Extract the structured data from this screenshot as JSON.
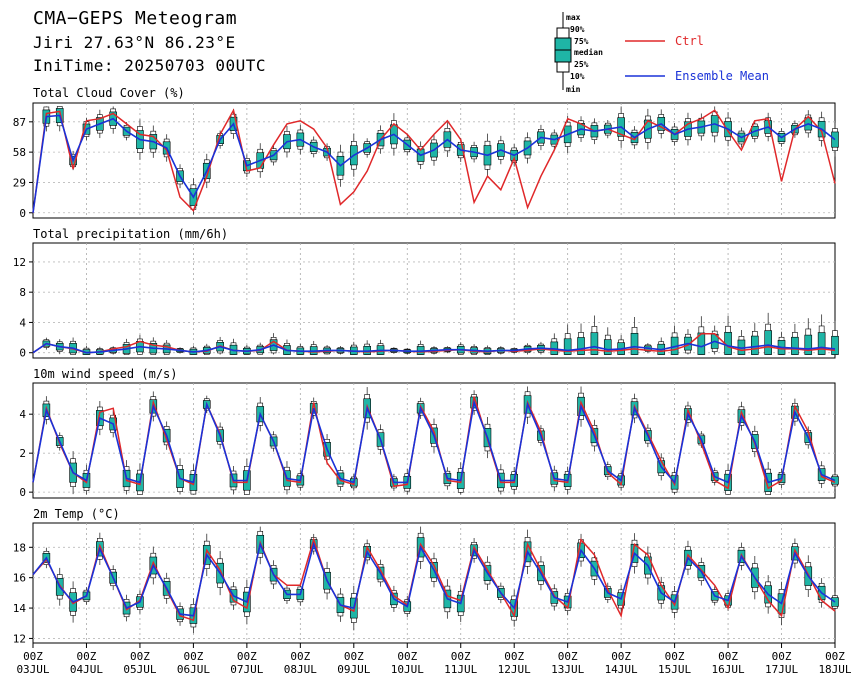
{
  "header": {
    "title": "CMA−GEPS Meteogram",
    "location": "Jiri 27.63°N 86.23°E",
    "init": "IniTime: 20250703 00UTC"
  },
  "legend": {
    "box_labels": [
      "max",
      "90%",
      "75%",
      "median",
      "25%",
      "10%",
      "min"
    ],
    "ctrl_label": "Ctrl",
    "ens_label": "Ensemble Mean",
    "ctrl_color": "#e0282a",
    "ens_color": "#1a32d8",
    "box_color": "#1fb5a6"
  },
  "chart_data": {
    "type": "meteogram",
    "time_step_hours": 6,
    "x_tick_labels": [
      [
        "00Z",
        "03JUL"
      ],
      [
        "00Z",
        "04JUL"
      ],
      [
        "00Z",
        "05JUL"
      ],
      [
        "00Z",
        "06JUL"
      ],
      [
        "00Z",
        "07JUL"
      ],
      [
        "00Z",
        "08JUL"
      ],
      [
        "00Z",
        "09JUL"
      ],
      [
        "00Z",
        "10JUL"
      ],
      [
        "00Z",
        "11JUL"
      ],
      [
        "00Z",
        "12JUL"
      ],
      [
        "00Z",
        "13JUL"
      ],
      [
        "00Z",
        "14JUL"
      ],
      [
        "00Z",
        "15JUL"
      ],
      [
        "00Z",
        "16JUL"
      ],
      [
        "00Z",
        "17JUL"
      ],
      [
        "00Z",
        "18JUL"
      ]
    ],
    "panels": [
      {
        "id": "cloud",
        "title": "Total Cloud Cover (%)",
        "yticks": [
          0,
          29,
          58,
          87
        ],
        "ylim": [
          -5,
          105
        ],
        "ctrl": [
          0,
          95,
          97,
          42,
          88,
          90,
          95,
          85,
          75,
          73,
          60,
          15,
          2,
          35,
          75,
          98,
          40,
          43,
          65,
          85,
          88,
          80,
          62,
          8,
          20,
          40,
          70,
          85,
          75,
          60,
          75,
          88,
          70,
          10,
          35,
          22,
          52,
          5,
          35,
          60,
          90,
          85,
          78,
          80,
          75,
          70,
          88,
          82,
          75,
          85,
          90,
          98,
          78,
          60,
          88,
          90,
          30,
          80,
          92,
          78,
          28,
          88,
          92,
          85,
          95,
          95,
          97,
          95,
          90
        ],
        "mean": [
          0,
          92,
          93,
          50,
          80,
          85,
          90,
          78,
          70,
          68,
          62,
          35,
          15,
          40,
          70,
          85,
          45,
          50,
          55,
          68,
          70,
          63,
          58,
          45,
          55,
          62,
          70,
          75,
          65,
          55,
          60,
          70,
          60,
          58,
          55,
          60,
          55,
          62,
          72,
          70,
          75,
          80,
          78,
          80,
          82,
          72,
          80,
          85,
          75,
          80,
          82,
          85,
          80,
          72,
          78,
          82,
          72,
          80,
          85,
          80,
          70,
          78,
          82,
          85,
          88,
          85,
          90,
          88,
          85
        ]
      },
      {
        "id": "precip",
        "title": "Total precipitation (mm/6h)",
        "yticks": [
          0,
          4,
          8,
          12
        ],
        "ylim": [
          -0.7,
          14.5
        ],
        "ctrl": [
          0,
          1.2,
          0.8,
          0.5,
          0,
          0.1,
          0.5,
          0.8,
          1.5,
          1.0,
          0.8,
          0.3,
          0.1,
          0.2,
          0.9,
          0.3,
          0.2,
          0.3,
          1.5,
          0.3,
          0.2,
          0.1,
          0.2,
          0.3,
          0.2,
          0.1,
          0.2,
          0.3,
          0.2,
          0.1,
          0.2,
          0.3,
          0.4,
          0.2,
          0.1,
          0.3,
          0.2,
          0.3,
          0.5,
          0.3,
          0.2,
          0.3,
          0.4,
          0.2,
          0.3,
          0.5,
          0.3,
          0.2,
          0.4,
          1.0,
          2.5,
          2.5,
          0.8,
          0.3,
          0.5,
          0.8,
          0.5,
          0.5,
          0.3,
          0.5,
          0.3,
          0.2,
          0.4,
          0.6,
          0.8,
          1.0,
          1.2,
          0.5,
          0.5
        ],
        "mean": [
          0,
          1.2,
          0.8,
          0.6,
          0,
          0.1,
          0.3,
          0.5,
          0.8,
          0.6,
          0.5,
          0.3,
          0.1,
          0.3,
          0.8,
          0.3,
          0.2,
          0.4,
          1.0,
          0.3,
          0.2,
          0.2,
          0.3,
          0.3,
          0.2,
          0.2,
          0.3,
          0.3,
          0.2,
          0.2,
          0.3,
          0.4,
          0.4,
          0.3,
          0.2,
          0.3,
          0.3,
          0.5,
          0.6,
          0.5,
          0.3,
          0.5,
          0.8,
          0.4,
          0.5,
          0.8,
          0.6,
          0.4,
          0.8,
          1.2,
          0.8,
          1.5,
          0.9,
          0.6,
          0.8,
          1.0,
          0.7,
          0.6,
          0.5,
          0.7,
          0.5,
          0.6,
          0.8,
          1.0,
          1.2,
          1.0,
          2.5,
          1.5,
          1.8
        ]
      },
      {
        "id": "wind",
        "title": "10m wind speed (m/s)",
        "yticks": [
          0,
          2,
          4
        ],
        "ylim": [
          -0.3,
          5.6
        ],
        "ctrl": [
          0.5,
          4.3,
          2.5,
          1.0,
          0.5,
          4.1,
          4.3,
          0.6,
          0.4,
          4.6,
          2.7,
          0.7,
          0.4,
          4.5,
          3.0,
          0.5,
          0.5,
          4.0,
          2.6,
          0.6,
          0.5,
          4.6,
          1.5,
          0.6,
          0.4,
          4.4,
          2.7,
          0.3,
          0.4,
          4.4,
          3.1,
          0.6,
          0.5,
          4.9,
          2.7,
          0.5,
          0.5,
          4.6,
          3.1,
          0.6,
          0.5,
          4.6,
          3.1,
          1.0,
          0.4,
          4.4,
          3.0,
          1.6,
          0.4,
          4.2,
          2.5,
          0.6,
          0.2,
          4.1,
          2.5,
          0.2,
          0.6,
          4.4,
          3.1,
          0.8,
          0.5,
          4.1,
          2.6,
          1.8,
          0.4,
          4.1,
          2.1,
          0.8,
          0.5
        ],
        "mean": [
          0.5,
          4.2,
          2.6,
          1.0,
          0.6,
          3.8,
          3.5,
          0.7,
          0.5,
          4.4,
          2.9,
          0.7,
          0.5,
          4.5,
          2.9,
          0.6,
          0.6,
          4.0,
          2.6,
          0.7,
          0.6,
          4.3,
          2.2,
          0.7,
          0.5,
          4.3,
          2.7,
          0.5,
          0.5,
          4.3,
          2.9,
          0.7,
          0.6,
          4.6,
          2.8,
          0.6,
          0.6,
          4.5,
          2.9,
          0.7,
          0.6,
          4.4,
          2.9,
          1.1,
          0.6,
          4.3,
          2.9,
          1.3,
          0.5,
          4.0,
          2.7,
          0.8,
          0.5,
          3.9,
          2.6,
          0.5,
          0.7,
          4.1,
          2.8,
          0.9,
          0.6,
          4.0,
          2.7,
          1.4,
          0.6,
          3.9,
          2.4,
          1.1,
          0.6
        ]
      },
      {
        "id": "temp",
        "title": "2m Temp (°C)",
        "yticks": [
          12,
          14,
          16,
          18
        ],
        "ylim": [
          11.7,
          19.6
        ],
        "ctrl": [
          16.2,
          17.2,
          15.5,
          14.3,
          14.8,
          18.1,
          16.0,
          13.9,
          14.5,
          17.0,
          15.2,
          13.5,
          13.2,
          17.8,
          16.5,
          14.5,
          14.0,
          18.3,
          16.2,
          15.5,
          15.5,
          18.5,
          15.8,
          14.2,
          13.8,
          18.0,
          16.5,
          14.8,
          14.2,
          18.2,
          16.8,
          14.8,
          14.5,
          18.0,
          16.5,
          15.0,
          13.5,
          18.2,
          16.5,
          14.8,
          14.0,
          18.5,
          17.5,
          15.2,
          13.5,
          18.2,
          17.5,
          15.5,
          14.2,
          17.5,
          16.5,
          15.5,
          14.0,
          17.5,
          16.0,
          14.5,
          13.5,
          17.8,
          16.2,
          14.5,
          13.8,
          18.2,
          16.2,
          15.0,
          14.5,
          16.5,
          15.8,
          15.0,
          15.2
        ],
        "mean": [
          16.2,
          17.3,
          15.4,
          14.4,
          14.8,
          17.9,
          16.0,
          14.0,
          14.4,
          16.8,
          15.3,
          13.6,
          13.5,
          17.5,
          16.3,
          14.8,
          14.4,
          18.2,
          16.2,
          14.9,
          14.9,
          18.2,
          15.8,
          14.2,
          14.0,
          17.7,
          16.3,
          14.6,
          14.1,
          18.0,
          16.5,
          14.6,
          14.3,
          17.8,
          16.3,
          15.0,
          14.0,
          17.7,
          16.3,
          14.7,
          14.4,
          17.8,
          16.6,
          15.0,
          14.6,
          17.6,
          16.8,
          15.0,
          14.4,
          17.3,
          16.4,
          14.8,
          14.5,
          17.4,
          16.0,
          14.9,
          14.3,
          17.6,
          16.1,
          15.0,
          14.4,
          17.7,
          16.2,
          14.9,
          14.8,
          16.6,
          16.0,
          15.0,
          14.8
        ]
      }
    ]
  }
}
